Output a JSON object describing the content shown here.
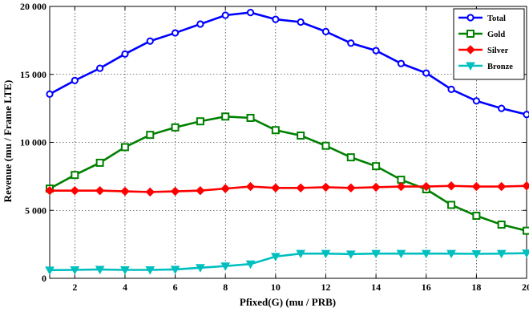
{
  "chart_data": {
    "type": "line",
    "title": "",
    "xlabel": "Pfixed(G) (mu / PRB)",
    "ylabel": "Revenue (mu / Frame LTE)",
    "xlim": [
      1,
      20
    ],
    "ylim": [
      0,
      20000
    ],
    "x_ticks": [
      "2",
      "4",
      "6",
      "8",
      "10",
      "12",
      "14",
      "16",
      "18",
      "20"
    ],
    "y_ticks": [
      "0",
      "5 000",
      "10 000",
      "15 000",
      "20 000"
    ],
    "grid": true,
    "legend_position": "top-right",
    "x": [
      1,
      2,
      3,
      4,
      5,
      6,
      7,
      8,
      9,
      10,
      11,
      12,
      13,
      14,
      15,
      16,
      17,
      18,
      19,
      20
    ],
    "series": [
      {
        "name": "Total",
        "color": "#0000ff",
        "marker": "circle",
        "values": [
          13550,
          14550,
          15450,
          16500,
          17450,
          18050,
          18700,
          19350,
          19550,
          19050,
          18850,
          18150,
          17300,
          16750,
          15800,
          15100,
          13900,
          13050,
          12500,
          12050
        ]
      },
      {
        "name": "Gold",
        "color": "#008000",
        "marker": "square",
        "values": [
          6600,
          7600,
          8500,
          9650,
          10550,
          11100,
          11550,
          11900,
          11800,
          10900,
          10500,
          9750,
          8900,
          8250,
          7250,
          6550,
          5400,
          4600,
          3950,
          3500
        ]
      },
      {
        "name": "Silver",
        "color": "#ff0000",
        "marker": "diamond",
        "values": [
          6450,
          6450,
          6450,
          6400,
          6350,
          6400,
          6450,
          6600,
          6750,
          6650,
          6650,
          6700,
          6650,
          6700,
          6750,
          6750,
          6800,
          6750,
          6750,
          6800
        ]
      },
      {
        "name": "Bronze",
        "color": "#00bfbf",
        "marker": "triangle-down",
        "values": [
          600,
          620,
          650,
          620,
          620,
          650,
          780,
          900,
          1050,
          1600,
          1820,
          1820,
          1780,
          1820,
          1820,
          1820,
          1820,
          1800,
          1820,
          1850
        ]
      }
    ]
  }
}
